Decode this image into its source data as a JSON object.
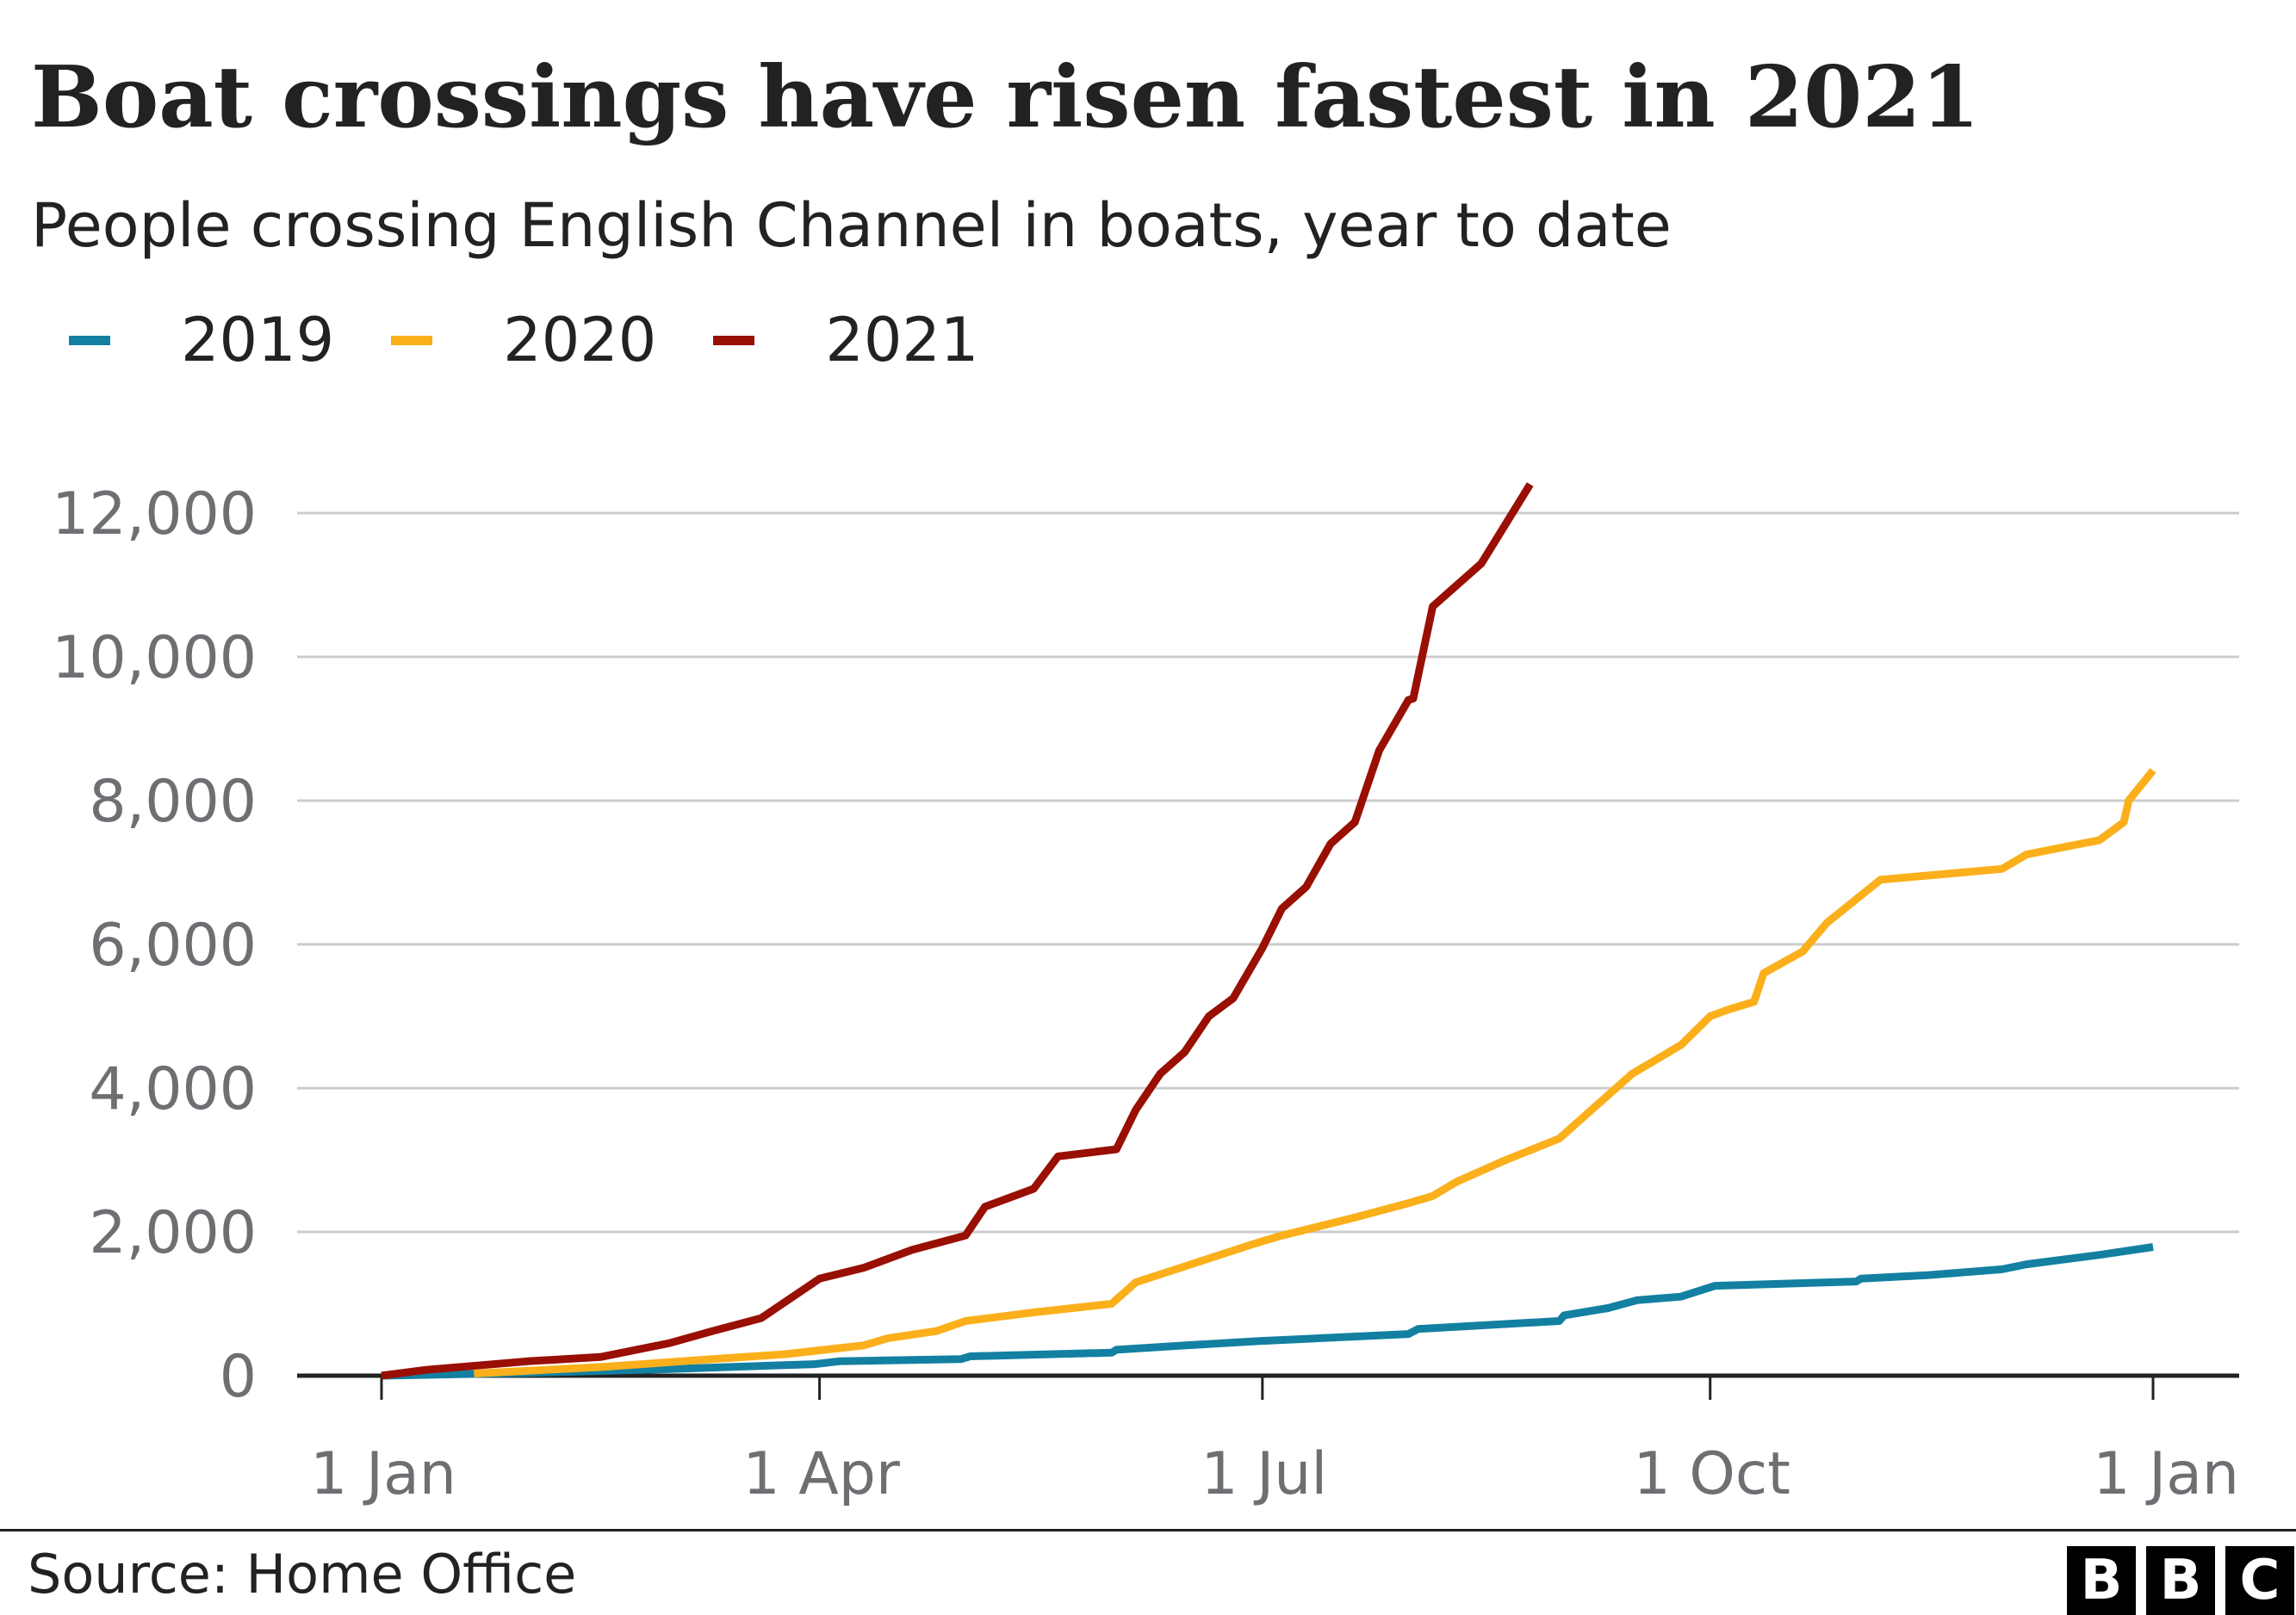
{
  "title": "Boat crossings have risen fastest in 2021",
  "subtitle": "People crossing English Channel in boats, year to date",
  "source": "Source: Home Office",
  "logo": "BBC",
  "colors": {
    "2019": "#1380a1",
    "2020": "#fbaf1b",
    "2021": "#990f04",
    "grid": "#cccccc",
    "axis": "#222222",
    "tick_label": "#6e6e73"
  },
  "chart_data": {
    "type": "line",
    "title": "Boat crossings have risen fastest in 2021",
    "subtitle": "People crossing English Channel in boats, year to date",
    "xlabel": "",
    "ylabel": "",
    "x_ticks": [
      {
        "label": "1 Jan",
        "date": "01-01"
      },
      {
        "label": "1 Apr",
        "date": "04-01"
      },
      {
        "label": "1 Jul",
        "date": "07-01"
      },
      {
        "label": "1 Oct",
        "date": "10-01"
      },
      {
        "label": "1 Jan",
        "date": "12-31"
      }
    ],
    "y_ticks": [
      0,
      2000,
      4000,
      6000,
      8000,
      10000,
      12000
    ],
    "y_tick_labels": [
      "0",
      "2,000",
      "4,000",
      "6,000",
      "8,000",
      "10,000",
      "12,000"
    ],
    "ylim": [
      0,
      12600
    ],
    "grid": true,
    "legend_position": "top-left",
    "series": [
      {
        "name": "2019",
        "color": "#1380a1",
        "points": [
          [
            "01-01",
            0
          ],
          [
            "01-31",
            40
          ],
          [
            "02-28",
            90
          ],
          [
            "03-31",
            160
          ],
          [
            "04-05",
            200
          ],
          [
            "04-30",
            230
          ],
          [
            "05-02",
            270
          ],
          [
            "05-31",
            320
          ],
          [
            "06-01",
            360
          ],
          [
            "06-15",
            420
          ],
          [
            "06-30",
            480
          ],
          [
            "07-31",
            580
          ],
          [
            "08-02",
            650
          ],
          [
            "08-31",
            760
          ],
          [
            "09-01",
            840
          ],
          [
            "09-10",
            940
          ],
          [
            "09-16",
            1050
          ],
          [
            "09-25",
            1100
          ],
          [
            "10-02",
            1250
          ],
          [
            "10-31",
            1310
          ],
          [
            "11-01",
            1350
          ],
          [
            "11-15",
            1400
          ],
          [
            "11-30",
            1480
          ],
          [
            "12-05",
            1550
          ],
          [
            "12-20",
            1680
          ],
          [
            "12-31",
            1790
          ]
        ]
      },
      {
        "name": "2020",
        "color": "#fbaf1b",
        "points": [
          [
            "01-20",
            30
          ],
          [
            "02-15",
            120
          ],
          [
            "03-10",
            230
          ],
          [
            "03-25",
            300
          ],
          [
            "04-10",
            420
          ],
          [
            "04-15",
            520
          ],
          [
            "04-25",
            620
          ],
          [
            "05-01",
            760
          ],
          [
            "05-15",
            880
          ],
          [
            "05-31",
            1000
          ],
          [
            "06-05",
            1300
          ],
          [
            "06-15",
            1520
          ],
          [
            "06-30",
            1850
          ],
          [
            "07-05",
            1950
          ],
          [
            "07-20",
            2200
          ],
          [
            "07-31",
            2400
          ],
          [
            "08-05",
            2500
          ],
          [
            "08-10",
            2700
          ],
          [
            "08-20",
            3000
          ],
          [
            "08-31",
            3300
          ],
          [
            "09-05",
            3600
          ],
          [
            "09-15",
            4200
          ],
          [
            "09-25",
            4600
          ],
          [
            "10-01",
            5000
          ],
          [
            "10-05",
            5100
          ],
          [
            "10-10",
            5200
          ],
          [
            "10-12",
            5600
          ],
          [
            "10-20",
            5900
          ],
          [
            "10-25",
            6300
          ],
          [
            "11-05",
            6900
          ],
          [
            "11-30",
            7050
          ],
          [
            "12-05",
            7250
          ],
          [
            "12-20",
            7450
          ],
          [
            "12-25",
            7700
          ],
          [
            "12-26",
            8000
          ],
          [
            "12-31",
            8420
          ]
        ]
      },
      {
        "name": "2021",
        "color": "#990f04",
        "points": [
          [
            "01-01",
            0
          ],
          [
            "01-10",
            80
          ],
          [
            "01-31",
            200
          ],
          [
            "02-15",
            260
          ],
          [
            "03-01",
            450
          ],
          [
            "03-10",
            620
          ],
          [
            "03-20",
            800
          ],
          [
            "04-01",
            1350
          ],
          [
            "04-10",
            1500
          ],
          [
            "04-20",
            1750
          ],
          [
            "05-01",
            1950
          ],
          [
            "05-05",
            2350
          ],
          [
            "05-15",
            2600
          ],
          [
            "05-20",
            3050
          ],
          [
            "06-01",
            3150
          ],
          [
            "06-05",
            3700
          ],
          [
            "06-10",
            4200
          ],
          [
            "06-15",
            4500
          ],
          [
            "06-20",
            5000
          ],
          [
            "06-25",
            5250
          ],
          [
            "07-01",
            5950
          ],
          [
            "07-05",
            6500
          ],
          [
            "07-10",
            6800
          ],
          [
            "07-15",
            7400
          ],
          [
            "07-20",
            7700
          ],
          [
            "07-25",
            8700
          ],
          [
            "07-31",
            9400
          ],
          [
            "08-01",
            9420
          ],
          [
            "08-05",
            10700
          ],
          [
            "08-15",
            11300
          ],
          [
            "08-25",
            12400
          ]
        ]
      }
    ]
  }
}
